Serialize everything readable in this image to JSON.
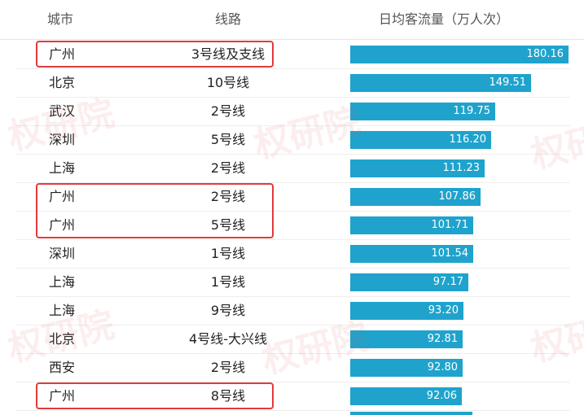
{
  "header": {
    "city": "城市",
    "line": "线路",
    "flow": "日均客流量（万人次）"
  },
  "watermark": "权研院",
  "colors": {
    "bar": "#1fa3cd",
    "highlight": "#e23b3b"
  },
  "chart_data": {
    "type": "bar",
    "orientation": "horizontal",
    "xlabel": "日均客流量（万人次）",
    "rows": [
      {
        "city": "广州",
        "line": "3号线及支线",
        "value": 180.16,
        "label": "180.16",
        "highlighted": true
      },
      {
        "city": "北京",
        "line": "10号线",
        "value": 149.51,
        "label": "149.51",
        "highlighted": false
      },
      {
        "city": "武汉",
        "line": "2号线",
        "value": 119.75,
        "label": "119.75",
        "highlighted": false
      },
      {
        "city": "深圳",
        "line": "5号线",
        "value": 116.2,
        "label": "116.20",
        "highlighted": false
      },
      {
        "city": "上海",
        "line": "2号线",
        "value": 111.23,
        "label": "111.23",
        "highlighted": false
      },
      {
        "city": "广州",
        "line": "2号线",
        "value": 107.86,
        "label": "107.86",
        "highlighted": true
      },
      {
        "city": "广州",
        "line": "5号线",
        "value": 101.71,
        "label": "101.71",
        "highlighted": true
      },
      {
        "city": "深圳",
        "line": "1号线",
        "value": 101.54,
        "label": "101.54",
        "highlighted": false
      },
      {
        "city": "上海",
        "line": "1号线",
        "value": 97.17,
        "label": "97.17",
        "highlighted": false
      },
      {
        "city": "上海",
        "line": "9号线",
        "value": 93.2,
        "label": "93.20",
        "highlighted": false
      },
      {
        "city": "北京",
        "line": "4号线-大兴线",
        "value": 92.81,
        "label": "92.81",
        "highlighted": false
      },
      {
        "city": "西安",
        "line": "2号线",
        "value": 92.8,
        "label": "92.80",
        "highlighted": false
      },
      {
        "city": "广州",
        "line": "8号线",
        "value": 92.06,
        "label": "92.06",
        "highlighted": true
      }
    ],
    "highlight_groups": [
      [
        0
      ],
      [
        5,
        6
      ],
      [
        12
      ]
    ]
  }
}
